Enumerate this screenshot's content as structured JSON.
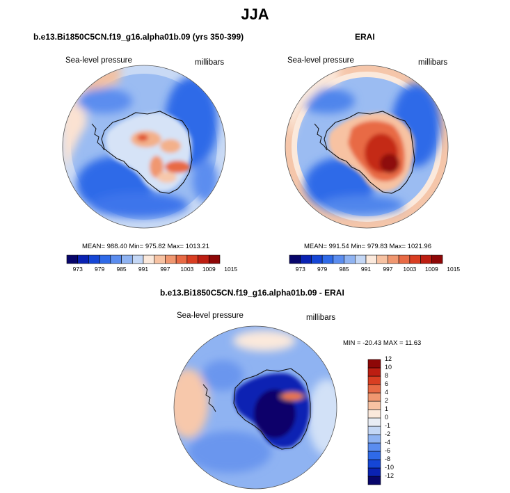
{
  "figure": {
    "title": "JJA",
    "left_panel": {
      "title": "b.e13.Bi1850C5CN.f19_g16.alpha01b.09 (yrs 350-399)",
      "variable": "Sea-level pressure",
      "units": "millibars",
      "stats": "MEAN= 988.40  Min= 975.82  Max= 1013.21"
    },
    "right_panel": {
      "title": "ERAI",
      "variable": "Sea-level pressure",
      "units": "millibars",
      "stats": "MEAN= 991.54  Min= 979.83  Max= 1021.96"
    },
    "diff_panel": {
      "title": "b.e13.Bi1850C5CN.f19_g16.alpha01b.09 - ERAI",
      "variable": "Sea-level pressure",
      "units": "millibars",
      "stats": "MIN = -20.43  MAX =  11.63"
    }
  },
  "colorbar_top": {
    "colors": [
      "#08066b",
      "#0a22b3",
      "#1546d6",
      "#2f6ae8",
      "#5b8def",
      "#8fb3f2",
      "#c4d7f5",
      "#fbe9dc",
      "#f7c2a2",
      "#f09770",
      "#e86a45",
      "#d93e22",
      "#bd1e12",
      "#8e0707"
    ],
    "ticks": [
      "973",
      "979",
      "985",
      "991",
      "997",
      "1003",
      "1009",
      "1015"
    ]
  },
  "colorbar_diff": {
    "colors": [
      "#08066b",
      "#0a22b3",
      "#1546d6",
      "#2f6ae8",
      "#5b8def",
      "#8fb3f2",
      "#c4d7f5",
      "#e9edf5",
      "#fbe9dc",
      "#f7c2a2",
      "#f09770",
      "#e86a45",
      "#d93e22",
      "#bd1e12",
      "#8e0707"
    ],
    "ticks": [
      "-12",
      "-10",
      "-8",
      "-6",
      "-4",
      "-2",
      "-1",
      "0",
      "1",
      "2",
      "4",
      "6",
      "8",
      "10",
      "12"
    ]
  }
}
